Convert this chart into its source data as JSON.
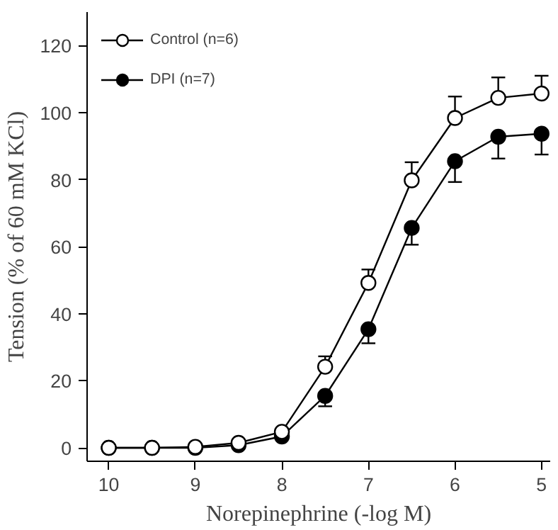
{
  "chart_data": {
    "type": "line",
    "xlabel": "Norepinephrine (-log M)",
    "ylabel": "Tension (% of 60 mM KCl)",
    "x": [
      10,
      9.5,
      9,
      8.5,
      8,
      7.5,
      7,
      6.5,
      6,
      5.5,
      5
    ],
    "series": [
      {
        "name": "Control (n=6)",
        "color": "#ffffff",
        "values": [
          0,
          0,
          0.3,
          1.5,
          4.8,
          24.2,
          49.2,
          79.8,
          98.4,
          104.4,
          105.7
        ],
        "errors": [
          null,
          null,
          null,
          null,
          null,
          [
            24.2,
            27.3
          ],
          [
            49.2,
            53.2
          ],
          [
            79.8,
            85.2
          ],
          [
            98.4,
            104.8
          ],
          [
            104.4,
            110.5
          ],
          [
            105.7,
            111
          ]
        ]
      },
      {
        "name": "DPI (n=7)",
        "color": "#000000",
        "values": [
          0,
          0,
          0,
          0.8,
          3.4,
          15.5,
          35.4,
          65.6,
          85.5,
          92.8,
          93.7
        ],
        "errors": [
          null,
          null,
          null,
          null,
          null,
          [
            12.4,
            15.5
          ],
          [
            31.2,
            35.4
          ],
          [
            60.6,
            65.6
          ],
          [
            79.3,
            85.5
          ],
          [
            86.3,
            92.8
          ],
          [
            87.5,
            93.7
          ]
        ]
      }
    ],
    "xlim": [
      10.25,
      4.9
    ],
    "ylim": [
      -4,
      130
    ],
    "xticks": [
      10,
      9,
      8,
      7,
      6,
      5
    ],
    "yticks": [
      0,
      20,
      40,
      60,
      80,
      100,
      120
    ],
    "marker": "circle",
    "line_style": "solid",
    "legend": "top left",
    "grid": false
  }
}
